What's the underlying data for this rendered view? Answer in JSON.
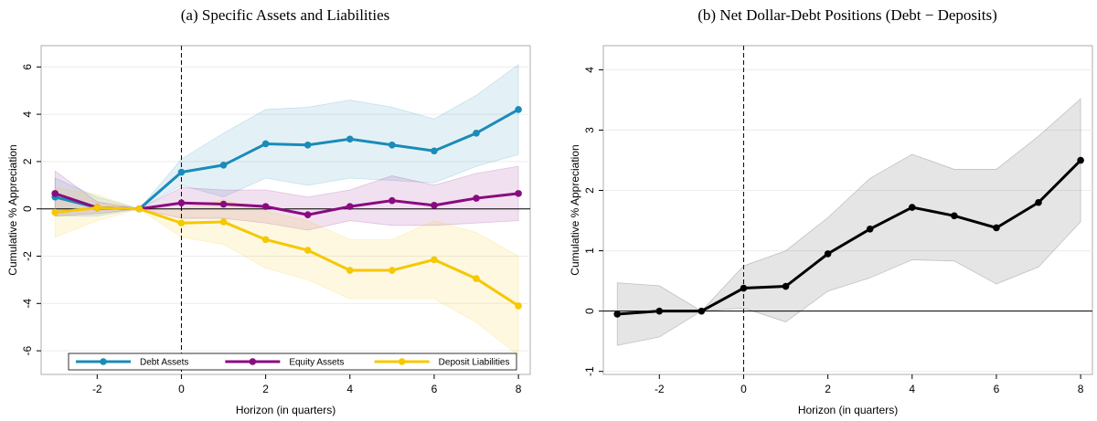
{
  "chart_data": [
    {
      "type": "line",
      "title": "(a)  Specific Assets and Liabilities",
      "x_label": "Horizon (in quarters)",
      "y_label": "Cumulative % Appreciation",
      "x": [
        -3,
        -2,
        -1,
        0,
        1,
        2,
        3,
        4,
        5,
        6,
        7,
        8
      ],
      "xlim": [
        -3.33,
        8.28
      ],
      "xticks": [
        -2,
        0,
        2,
        4,
        6,
        8
      ],
      "ylim": [
        -7.0,
        6.9
      ],
      "yticks": [
        -6,
        -4,
        -2,
        0,
        2,
        4,
        6
      ],
      "grid": true,
      "hline": 0,
      "vline": 0,
      "legend": "bottom",
      "series": [
        {
          "name": "Debt Assets",
          "color": "#1b8bb8",
          "values": [
            0.5,
            0.05,
            0,
            1.55,
            1.85,
            2.75,
            2.7,
            2.95,
            2.7,
            2.45,
            3.2,
            4.2
          ],
          "lower": [
            -0.3,
            -0.3,
            0,
            1.0,
            0.5,
            1.3,
            1.0,
            1.3,
            1.2,
            1.1,
            1.8,
            2.3
          ],
          "upper": [
            1.3,
            0.5,
            0,
            2.1,
            3.2,
            4.2,
            4.3,
            4.6,
            4.3,
            3.8,
            4.8,
            6.1
          ]
        },
        {
          "name": "Equity Assets",
          "color": "#8a0a80",
          "values": [
            0.65,
            0.05,
            0,
            0.25,
            0.2,
            0.1,
            -0.25,
            0.1,
            0.35,
            0.15,
            0.45,
            0.65
          ],
          "lower": [
            -0.3,
            -0.2,
            0,
            -0.4,
            -0.4,
            -0.6,
            -0.9,
            -0.5,
            -0.7,
            -0.7,
            -0.6,
            -0.5
          ],
          "upper": [
            1.6,
            0.3,
            0,
            0.9,
            0.8,
            0.8,
            0.5,
            0.8,
            1.4,
            1.0,
            1.5,
            1.8
          ]
        },
        {
          "name": "Deposit Liabilities",
          "color": "#f5c800",
          "values": [
            -0.15,
            0.05,
            0,
            -0.6,
            -0.55,
            -1.3,
            -1.75,
            -2.6,
            -2.6,
            -2.15,
            -2.95,
            -4.1
          ],
          "lower": [
            -1.2,
            -0.5,
            0,
            -1.2,
            -1.5,
            -2.5,
            -3.0,
            -3.8,
            -3.8,
            -3.8,
            -4.8,
            -6.2
          ],
          "upper": [
            0.9,
            0.6,
            0,
            0,
            0.4,
            -0.1,
            -0.5,
            -1.3,
            -1.3,
            -0.5,
            -1.0,
            -2.0
          ]
        }
      ]
    },
    {
      "type": "line",
      "title": "(b)  Net Dollar-Debt Positions (Debt − Deposits)",
      "x_label": "Horizon (in quarters)",
      "y_label": "Cumulative % Appreciation",
      "x": [
        -3,
        -2,
        -1,
        0,
        1,
        2,
        3,
        4,
        5,
        6,
        7,
        8
      ],
      "xlim": [
        -3.33,
        8.28
      ],
      "xticks": [
        -2,
        0,
        2,
        4,
        6,
        8
      ],
      "ylim": [
        -1.05,
        4.4
      ],
      "yticks": [
        -1,
        0,
        1,
        2,
        3,
        4
      ],
      "grid": true,
      "hline": 0,
      "vline": 0,
      "series": [
        {
          "color": "#000000",
          "values": [
            -0.05,
            0,
            0,
            0.38,
            0.41,
            0.95,
            1.36,
            1.72,
            1.58,
            1.38,
            1.8,
            2.5
          ],
          "lower": [
            -0.57,
            -0.43,
            0,
            0.05,
            -0.18,
            0.33,
            0.55,
            0.85,
            0.83,
            0.45,
            0.73,
            1.48
          ],
          "upper": [
            0.47,
            0.42,
            0,
            0.75,
            1.0,
            1.55,
            2.2,
            2.6,
            2.35,
            2.35,
            2.9,
            3.52
          ]
        }
      ]
    }
  ]
}
